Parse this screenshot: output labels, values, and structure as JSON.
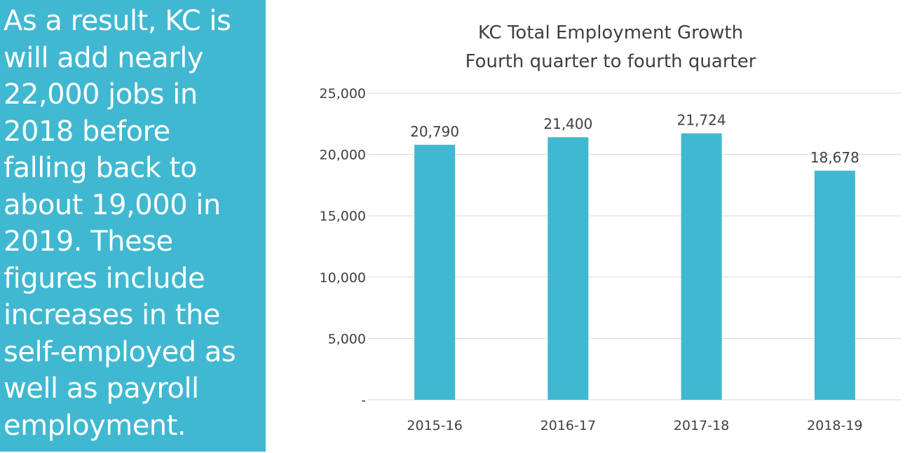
{
  "colors": {
    "panel": "#40b8d1",
    "bar": "#40b8d1",
    "text_dark": "#404040",
    "grid": "#d9d9d9"
  },
  "side_text": "As a result, KC is\nwill add nearly\n22,000 jobs in\n2018 before\nfalling back to\nabout 19,000 in\n2019.  These\nfigures include\nincreases in the\nself-employed as\nwell as payroll\nemployment.",
  "chart_data": {
    "type": "bar",
    "title": "KC Total Employment Growth",
    "subtitle": "Fourth quarter to fourth quarter",
    "categories": [
      "2015-16",
      "2016-17",
      "2017-18",
      "2018-19"
    ],
    "values": [
      20790,
      21400,
      21724,
      18678
    ],
    "data_labels": [
      "20,790",
      "21,400",
      "21,724",
      "18,678"
    ],
    "ylim": [
      0,
      25000
    ],
    "yticks": [
      0,
      5000,
      10000,
      15000,
      20000,
      25000
    ],
    "ytick_labels": [
      "-",
      "5,000",
      "10,000",
      "15,000",
      "20,000",
      "25,000"
    ],
    "grid": true,
    "legend": false
  }
}
